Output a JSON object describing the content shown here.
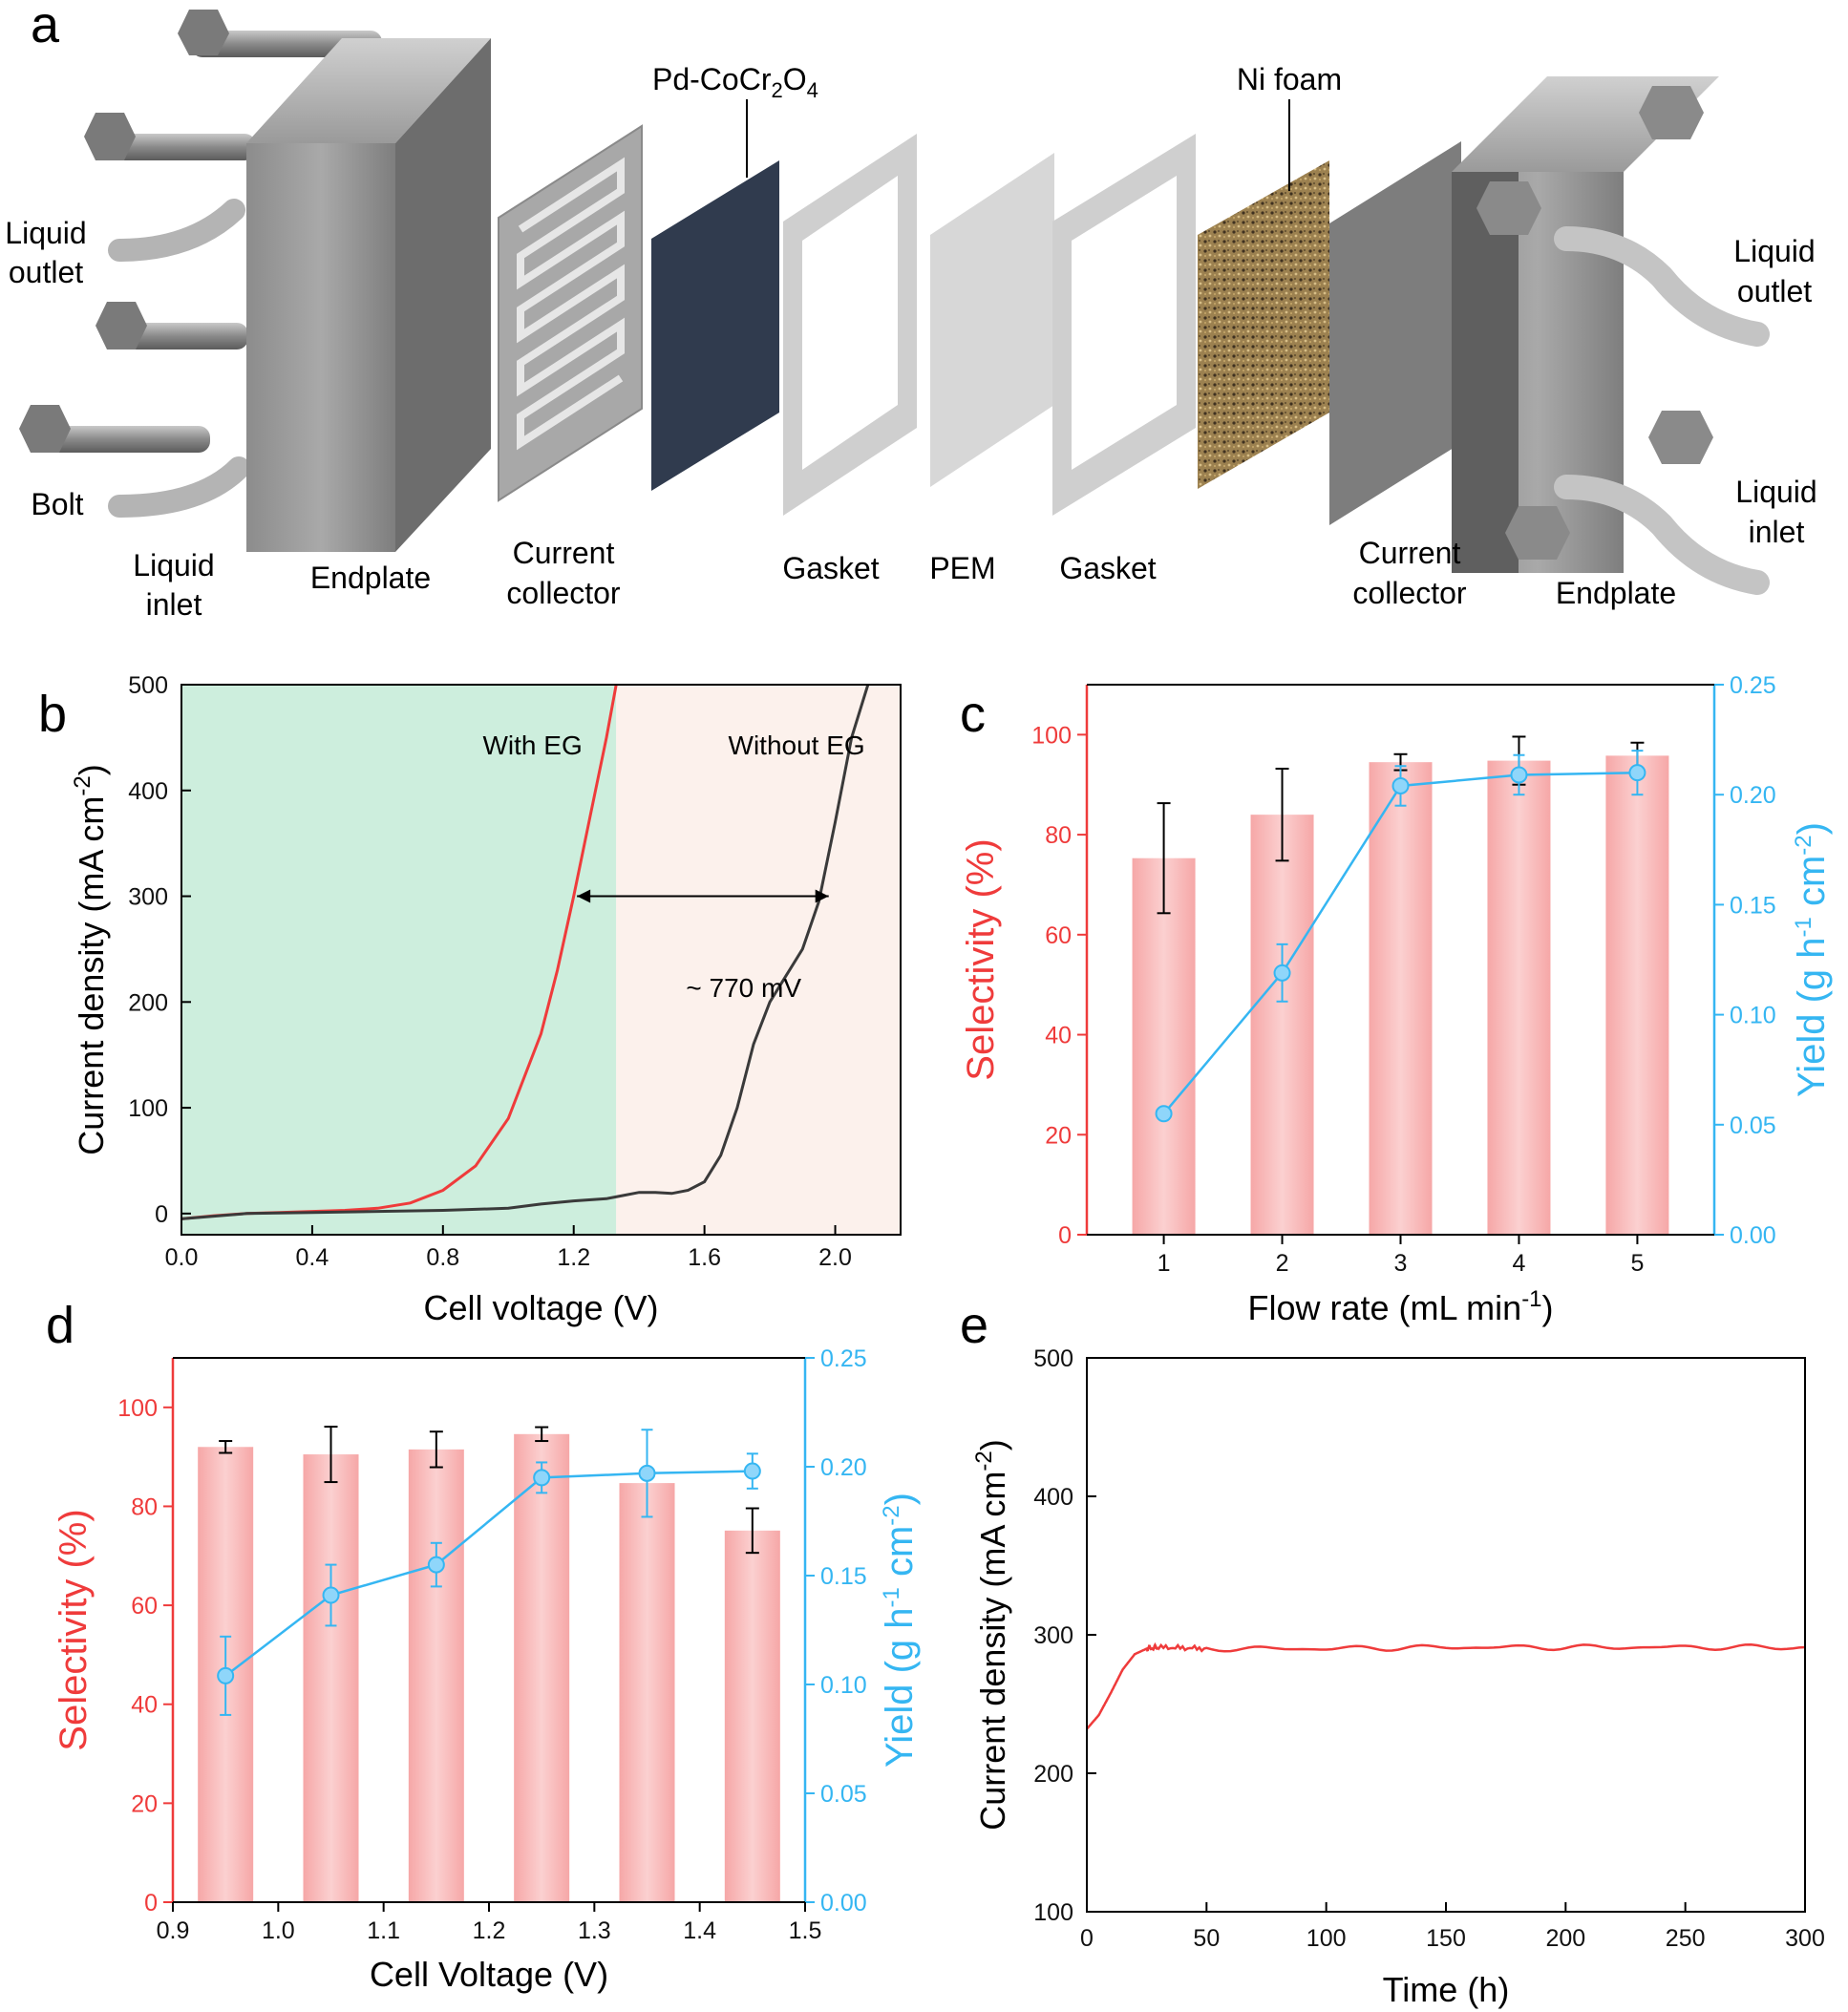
{
  "panel_labels": {
    "a": "a",
    "b": "b",
    "c": "c",
    "d": "d",
    "e": "e"
  },
  "panel_a": {
    "left_liquid_outlet": [
      "Liquid",
      "outlet"
    ],
    "left_liquid_inlet": [
      "Liquid",
      "inlet"
    ],
    "bolt": "Bolt",
    "endplate_left": "Endplate",
    "current_collector_left": [
      "Current",
      "collector"
    ],
    "catalyst": {
      "base": "Pd-CoCr",
      "sub1": "2",
      "mid": "O",
      "sub2": "4"
    },
    "gasket_left": "Gasket",
    "pem": "PEM",
    "gasket_right": "Gasket",
    "ni_foam": "Ni foam",
    "current_collector_right": [
      "Current",
      "collector"
    ],
    "endplate_right": "Endplate",
    "right_liquid_outlet": [
      "Liquid",
      "outlet"
    ],
    "right_liquid_inlet": [
      "Liquid",
      "inlet"
    ]
  },
  "colors": {
    "red": "#ef3b3b",
    "blue": "#35b6f2",
    "green_region": "#cdeedd",
    "pink_region": "#fcf1ec",
    "bar": "#f8b4b4",
    "dark_curve": "#3a3a3a"
  },
  "chart_data": [
    {
      "id": "b",
      "type": "line",
      "xlabel": "Cell voltage (V)",
      "ylabel": {
        "base": "Current density (mA cm",
        "sup": "-2",
        "end": ")"
      },
      "xlim": [
        0.0,
        2.2
      ],
      "ylim": [
        -20,
        500
      ],
      "xticks": [
        "0.0",
        "0.4",
        "0.8",
        "1.2",
        "1.6",
        "2.0"
      ],
      "yticks": [
        "0",
        "100",
        "200",
        "300",
        "400",
        "500"
      ],
      "regions": [
        {
          "label": "With EG",
          "x_range": [
            0.0,
            1.33
          ]
        },
        {
          "label": "Without EG",
          "x_range": [
            1.33,
            2.2
          ]
        }
      ],
      "annotation": {
        "text": "~ 770 mV",
        "arrow_y": 300,
        "x_from": 1.21,
        "x_to": 1.98
      },
      "series": [
        {
          "name": "With EG",
          "color": "#ef3b3b",
          "x": [
            0.0,
            0.1,
            0.2,
            0.3,
            0.4,
            0.5,
            0.6,
            0.7,
            0.8,
            0.9,
            1.0,
            1.1,
            1.15,
            1.2,
            1.25,
            1.3,
            1.33
          ],
          "y": [
            -5,
            -2,
            0,
            1,
            2,
            3,
            5,
            10,
            22,
            45,
            90,
            170,
            230,
            300,
            375,
            450,
            500
          ]
        },
        {
          "name": "Without EG",
          "color": "#3a3a3a",
          "x": [
            0.0,
            0.2,
            0.4,
            0.6,
            0.8,
            0.9,
            1.0,
            1.1,
            1.2,
            1.3,
            1.35,
            1.4,
            1.45,
            1.5,
            1.55,
            1.6,
            1.65,
            1.7,
            1.75,
            1.8,
            1.85,
            1.9,
            1.95,
            2.0,
            2.05,
            2.1
          ],
          "y": [
            -5,
            0,
            1,
            2,
            3,
            4,
            5,
            9,
            12,
            14,
            17,
            20,
            20,
            19,
            22,
            30,
            55,
            100,
            160,
            200,
            225,
            250,
            295,
            370,
            450,
            500
          ]
        }
      ]
    },
    {
      "id": "c",
      "type": "bar+line",
      "xlabel": {
        "base": "Flow rate (mL min",
        "sup": "-1",
        "end": ")"
      },
      "ylabel_left": "Selectivity (%)",
      "ylabel_right": {
        "base": "Yield (g h",
        "sup1": "-1",
        "mid": " cm",
        "sup2": "-2",
        "end": ")"
      },
      "categories": [
        "1",
        "2",
        "3",
        "4",
        "5"
      ],
      "x": [
        1,
        2,
        3,
        4,
        5
      ],
      "xlim": [
        0.35,
        5.65
      ],
      "ylim_left": [
        0,
        110
      ],
      "ylim_right": [
        0,
        0.25
      ],
      "yticks_left": [
        "0",
        "20",
        "40",
        "60",
        "80",
        "100"
      ],
      "yticks_right": [
        "0.00",
        "0.05",
        "0.10",
        "0.15",
        "0.20",
        "0.25"
      ],
      "selectivity": [
        75.3,
        84.0,
        94.5,
        94.8,
        95.8
      ],
      "selectivity_err": [
        11.0,
        9.2,
        1.6,
        4.8,
        2.6
      ],
      "yield": [
        0.055,
        0.119,
        0.204,
        0.209,
        0.21
      ],
      "yield_err": [
        0.002,
        0.013,
        0.009,
        0.009,
        0.01
      ]
    },
    {
      "id": "d",
      "type": "bar+line",
      "xlabel": "Cell Voltage (V)",
      "ylabel_left": "Selectivity (%)",
      "ylabel_right": {
        "base": "Yield (g h",
        "sup1": "-1",
        "mid": " cm",
        "sup2": "-2",
        "end": ")"
      },
      "x": [
        0.95,
        1.05,
        1.15,
        1.25,
        1.35,
        1.45
      ],
      "xlim": [
        0.9,
        1.5
      ],
      "xticks": [
        "0.9",
        "1.0",
        "1.1",
        "1.2",
        "1.3",
        "1.4",
        "1.5"
      ],
      "ylim_left": [
        0,
        110
      ],
      "ylim_right": [
        0,
        0.25
      ],
      "yticks_left": [
        "0",
        "20",
        "40",
        "60",
        "80",
        "100"
      ],
      "yticks_right": [
        "0.00",
        "0.05",
        "0.10",
        "0.15",
        "0.20",
        "0.25"
      ],
      "selectivity": [
        92.0,
        90.5,
        91.5,
        94.6,
        84.7,
        75.1
      ],
      "selectivity_err": [
        1.2,
        5.6,
        3.6,
        1.4,
        0.0,
        4.5
      ],
      "yield": [
        0.104,
        0.141,
        0.155,
        0.195,
        0.197,
        0.198
      ],
      "yield_err": [
        0.018,
        0.014,
        0.01,
        0.007,
        0.02,
        0.008
      ]
    },
    {
      "id": "e",
      "type": "line",
      "xlabel": "Time (h)",
      "ylabel": {
        "base": "Current density (mA cm",
        "sup": "-2",
        "end": ")"
      },
      "xlim": [
        0,
        300
      ],
      "ylim": [
        100,
        500
      ],
      "xticks": [
        "0",
        "50",
        "100",
        "150",
        "200",
        "250",
        "300"
      ],
      "yticks": [
        "100",
        "200",
        "300",
        "400",
        "500"
      ],
      "series": [
        {
          "name": "Current density",
          "color": "#ef3b3b",
          "x": [
            0,
            5,
            10,
            15,
            20,
            25,
            30,
            50,
            100,
            150,
            200,
            250,
            300
          ],
          "y": [
            232,
            242,
            258,
            275,
            286,
            290,
            291,
            290,
            290,
            291,
            291,
            291,
            291
          ]
        }
      ]
    }
  ]
}
